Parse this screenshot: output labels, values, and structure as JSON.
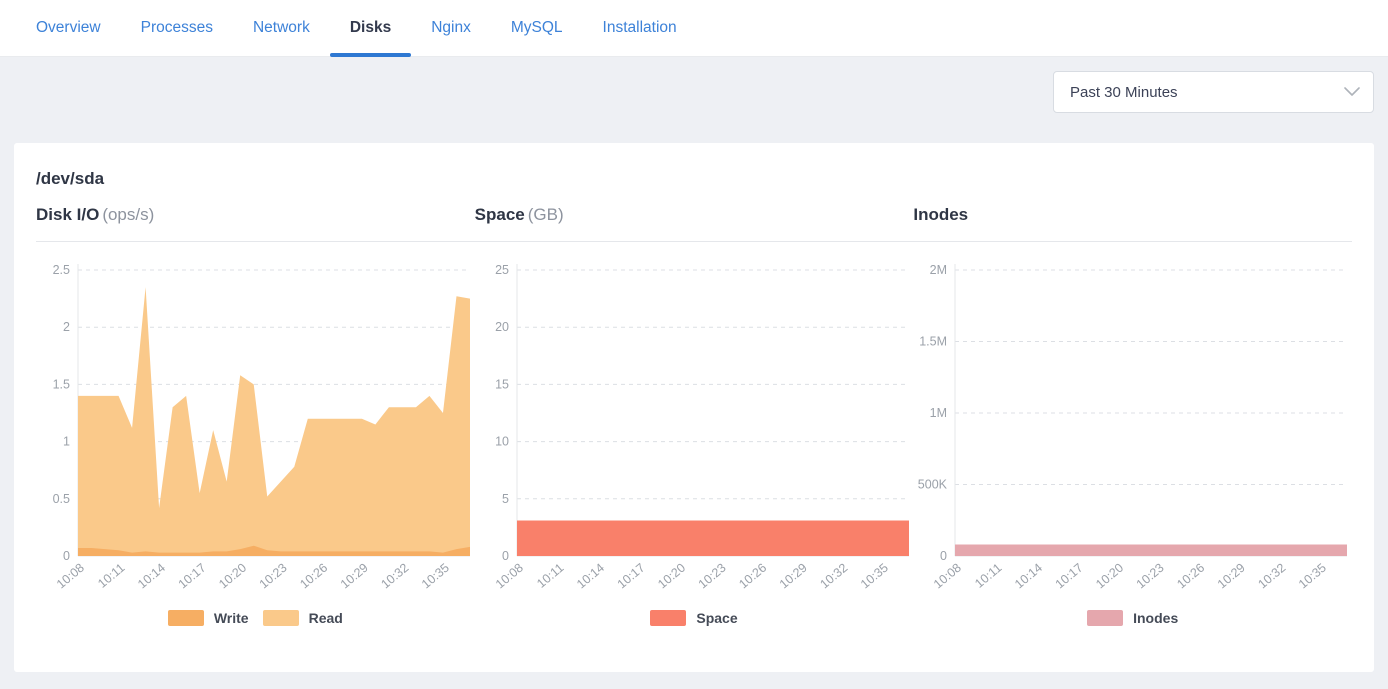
{
  "colors": {
    "accent_blue": "#2e78d2",
    "write_orange": "#f6ae63",
    "read_orange": "#fac98a",
    "space_salmon": "#f9806a",
    "inodes_pink": "#e5a7ad"
  },
  "tabs": {
    "items": [
      {
        "label": "Overview",
        "active": false
      },
      {
        "label": "Processes",
        "active": false
      },
      {
        "label": "Network",
        "active": false
      },
      {
        "label": "Disks",
        "active": true
      },
      {
        "label": "Nginx",
        "active": false
      },
      {
        "label": "MySQL",
        "active": false
      },
      {
        "label": "Installation",
        "active": false
      }
    ]
  },
  "toolbar": {
    "time_range": {
      "value": "Past 30 Minutes"
    }
  },
  "panel": {
    "device": "/dev/sda"
  },
  "chart_data": [
    {
      "type": "area",
      "title": "Disk I/O",
      "unit": "(ops/s)",
      "x": [
        "10:08",
        "10:09",
        "10:10",
        "10:11",
        "10:12",
        "10:13",
        "10:14",
        "10:15",
        "10:16",
        "10:17",
        "10:18",
        "10:19",
        "10:20",
        "10:21",
        "10:22",
        "10:23",
        "10:24",
        "10:25",
        "10:26",
        "10:27",
        "10:28",
        "10:29",
        "10:30",
        "10:31",
        "10:32",
        "10:33",
        "10:34",
        "10:35",
        "10:36",
        "10:37"
      ],
      "x_tick_every": 3,
      "ylim": [
        0,
        2.5
      ],
      "y_ticks": [
        0,
        0.5,
        1,
        1.5,
        2,
        2.5
      ],
      "y_tick_labels": [
        "0",
        "0.5",
        "1",
        "1.5",
        "2",
        "2.5"
      ],
      "grid": "dashed",
      "legend_position": "bottom",
      "series": [
        {
          "name": "Write",
          "color": "#f6ae63",
          "values": [
            0.07,
            0.07,
            0.06,
            0.05,
            0.03,
            0.04,
            0.03,
            0.03,
            0.03,
            0.03,
            0.04,
            0.04,
            0.06,
            0.09,
            0.05,
            0.04,
            0.04,
            0.04,
            0.04,
            0.04,
            0.04,
            0.04,
            0.04,
            0.04,
            0.04,
            0.04,
            0.04,
            0.03,
            0.06,
            0.08
          ]
        },
        {
          "name": "Read",
          "color": "#fac98a",
          "values": [
            1.4,
            1.4,
            1.4,
            1.4,
            1.12,
            2.35,
            0.42,
            1.3,
            1.4,
            0.55,
            1.1,
            0.65,
            1.58,
            1.5,
            0.52,
            0.65,
            0.78,
            1.2,
            1.2,
            1.2,
            1.2,
            1.2,
            1.15,
            1.3,
            1.3,
            1.3,
            1.4,
            1.25,
            2.27,
            2.25
          ]
        }
      ]
    },
    {
      "type": "area",
      "title": "Space",
      "unit": "(GB)",
      "x": [
        "10:08",
        "10:09",
        "10:10",
        "10:11",
        "10:12",
        "10:13",
        "10:14",
        "10:15",
        "10:16",
        "10:17",
        "10:18",
        "10:19",
        "10:20",
        "10:21",
        "10:22",
        "10:23",
        "10:24",
        "10:25",
        "10:26",
        "10:27",
        "10:28",
        "10:29",
        "10:30",
        "10:31",
        "10:32",
        "10:33",
        "10:34",
        "10:35",
        "10:36",
        "10:37"
      ],
      "x_tick_every": 3,
      "ylim": [
        0,
        25
      ],
      "y_ticks": [
        0,
        5,
        10,
        15,
        20,
        25
      ],
      "y_tick_labels": [
        "0",
        "5",
        "10",
        "15",
        "20",
        "25"
      ],
      "grid": "dashed",
      "legend_position": "bottom",
      "series": [
        {
          "name": "Space",
          "color": "#f9806a",
          "values": [
            3.1,
            3.1,
            3.1,
            3.1,
            3.1,
            3.1,
            3.1,
            3.1,
            3.1,
            3.1,
            3.1,
            3.1,
            3.1,
            3.1,
            3.1,
            3.1,
            3.1,
            3.1,
            3.1,
            3.1,
            3.1,
            3.1,
            3.1,
            3.1,
            3.1,
            3.1,
            3.1,
            3.1,
            3.1,
            3.1
          ]
        }
      ]
    },
    {
      "type": "area",
      "title": "Inodes",
      "unit": "",
      "x": [
        "10:08",
        "10:09",
        "10:10",
        "10:11",
        "10:12",
        "10:13",
        "10:14",
        "10:15",
        "10:16",
        "10:17",
        "10:18",
        "10:19",
        "10:20",
        "10:21",
        "10:22",
        "10:23",
        "10:24",
        "10:25",
        "10:26",
        "10:27",
        "10:28",
        "10:29",
        "10:30",
        "10:31",
        "10:32",
        "10:33",
        "10:34",
        "10:35",
        "10:36",
        "10:37"
      ],
      "x_tick_every": 3,
      "ylim": [
        0,
        2000000
      ],
      "y_ticks": [
        0,
        500000,
        1000000,
        1500000,
        2000000
      ],
      "y_tick_labels": [
        "0",
        "500K",
        "1M",
        "1.5M",
        "2M"
      ],
      "grid": "dashed",
      "legend_position": "bottom",
      "series": [
        {
          "name": "Inodes",
          "color": "#e5a7ad",
          "values": [
            80000,
            80000,
            80000,
            80000,
            80000,
            80000,
            80000,
            80000,
            80000,
            80000,
            80000,
            80000,
            80000,
            80000,
            80000,
            80000,
            80000,
            80000,
            80000,
            80000,
            80000,
            80000,
            80000,
            80000,
            80000,
            80000,
            80000,
            80000,
            80000,
            80000
          ]
        }
      ]
    }
  ]
}
